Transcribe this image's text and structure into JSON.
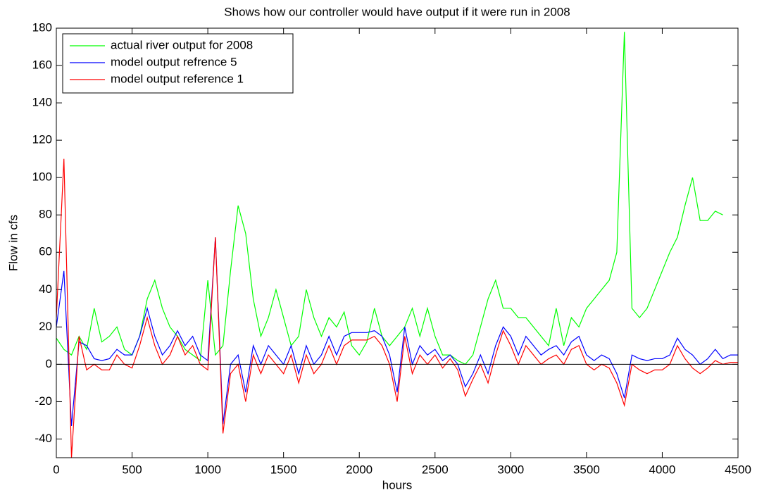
{
  "chart_data": {
    "type": "line",
    "title": "Shows how our controller would have output if it were run in 2008",
    "xlabel": "hours",
    "ylabel": "Flow in cfs",
    "xlim": [
      0,
      4500
    ],
    "ylim": [
      -50,
      180
    ],
    "xticks": [
      0,
      500,
      1000,
      1500,
      2000,
      2500,
      3000,
      3500,
      4000,
      4500
    ],
    "yticks": [
      -40,
      -20,
      0,
      20,
      40,
      60,
      80,
      100,
      120,
      140,
      160,
      180
    ],
    "reference_line": 0,
    "legend": "upper left",
    "x": [
      0,
      50,
      100,
      150,
      200,
      250,
      300,
      350,
      400,
      450,
      500,
      550,
      600,
      650,
      700,
      750,
      800,
      850,
      900,
      950,
      1000,
      1050,
      1100,
      1150,
      1200,
      1250,
      1300,
      1350,
      1400,
      1450,
      1500,
      1550,
      1600,
      1650,
      1700,
      1750,
      1800,
      1850,
      1900,
      1950,
      2000,
      2050,
      2100,
      2150,
      2200,
      2250,
      2300,
      2350,
      2400,
      2450,
      2500,
      2550,
      2600,
      2650,
      2700,
      2750,
      2800,
      2850,
      2900,
      2950,
      3000,
      3050,
      3100,
      3150,
      3200,
      3250,
      3300,
      3350,
      3400,
      3450,
      3500,
      3550,
      3600,
      3650,
      3700,
      3750,
      3800,
      3850,
      3900,
      3950,
      4000,
      4050,
      4100,
      4150,
      4200,
      4250,
      4300,
      4350,
      4400,
      4450,
      4500
    ],
    "series": [
      {
        "name": "actual river output for 2008",
        "color": "#00ff00",
        "values": [
          14,
          8,
          5,
          15,
          8,
          30,
          12,
          15,
          20,
          8,
          5,
          15,
          35,
          45,
          30,
          20,
          15,
          8,
          5,
          2,
          45,
          5,
          10,
          50,
          85,
          70,
          35,
          15,
          25,
          40,
          25,
          10,
          15,
          40,
          25,
          15,
          25,
          20,
          28,
          10,
          5,
          12,
          30,
          15,
          10,
          15,
          20,
          30,
          15,
          30,
          15,
          5,
          5,
          2,
          0,
          5,
          20,
          35,
          45,
          30,
          30,
          25,
          25,
          20,
          15,
          10,
          30,
          10,
          25,
          20,
          30,
          35,
          40,
          45,
          60,
          178,
          30,
          25,
          30,
          40,
          50,
          60,
          68,
          85,
          100,
          77,
          77,
          82,
          80,
          null,
          null
        ]
      },
      {
        "name": "model output refrence 5",
        "color": "#0000ff",
        "values": [
          20,
          50,
          -33,
          12,
          10,
          3,
          2,
          3,
          8,
          5,
          5,
          15,
          30,
          15,
          5,
          10,
          18,
          10,
          15,
          5,
          2,
          68,
          -32,
          0,
          5,
          -15,
          10,
          0,
          10,
          5,
          0,
          10,
          -5,
          10,
          0,
          5,
          15,
          5,
          15,
          17,
          17,
          17,
          18,
          15,
          5,
          -15,
          20,
          0,
          10,
          5,
          8,
          2,
          5,
          0,
          -12,
          -5,
          5,
          -5,
          10,
          20,
          15,
          5,
          15,
          10,
          5,
          8,
          10,
          5,
          12,
          15,
          5,
          2,
          5,
          3,
          -5,
          -18,
          5,
          3,
          2,
          3,
          3,
          5,
          14,
          8,
          5,
          0,
          3,
          8,
          3,
          5,
          5
        ]
      },
      {
        "name": "model output reference 1",
        "color": "#ff0000",
        "values": [
          25,
          110,
          -50,
          15,
          -3,
          0,
          -3,
          -3,
          5,
          0,
          -2,
          10,
          25,
          10,
          0,
          5,
          15,
          5,
          10,
          0,
          -3,
          68,
          -37,
          -5,
          0,
          -20,
          5,
          -5,
          5,
          0,
          -5,
          5,
          -10,
          5,
          -5,
          0,
          10,
          0,
          10,
          13,
          13,
          13,
          15,
          10,
          0,
          -20,
          15,
          -5,
          5,
          0,
          5,
          -2,
          3,
          -3,
          -17,
          -8,
          0,
          -10,
          5,
          18,
          10,
          0,
          10,
          5,
          0,
          3,
          5,
          0,
          8,
          10,
          0,
          -3,
          0,
          -2,
          -10,
          -22,
          0,
          -3,
          -5,
          -3,
          -3,
          0,
          10,
          3,
          -2,
          -5,
          -2,
          2,
          0,
          1,
          1
        ]
      }
    ]
  }
}
